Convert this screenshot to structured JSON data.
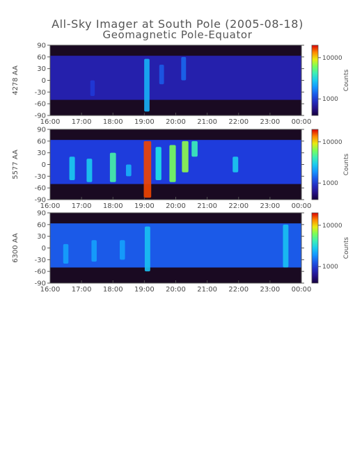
{
  "title": "All-Sky Imager at South Pole (2005-08-18)",
  "subtitle": "Geomagnetic Pole-Equator",
  "chart_data": [
    {
      "type": "heatmap",
      "ylabel": "4278 AA",
      "x_ticks": [
        "16:00",
        "17:00",
        "18:00",
        "19:00",
        "20:00",
        "21:00",
        "22:00",
        "23:00",
        "00:00"
      ],
      "y_ticks": [
        90,
        60,
        30,
        0,
        -30,
        -60,
        -90
      ],
      "ylim": [
        -90,
        90
      ],
      "colorbar": {
        "label": "Counts",
        "ticks": [
          10000,
          1000
        ],
        "scale": "log"
      },
      "background_level": 0.16,
      "data_band_y": [
        -50,
        63
      ],
      "features": [
        {
          "t": 19.08,
          "y": [
            -80,
            55
          ],
          "level": 0.45
        },
        {
          "t": 19.55,
          "y": [
            -10,
            40
          ],
          "level": 0.3
        },
        {
          "t": 20.25,
          "y": [
            0,
            60
          ],
          "level": 0.32
        },
        {
          "t": 17.35,
          "y": [
            -40,
            0
          ],
          "level": 0.24
        }
      ]
    },
    {
      "type": "heatmap",
      "ylabel": "5577 AA",
      "x_ticks": [
        "16:00",
        "17:00",
        "18:00",
        "19:00",
        "20:00",
        "21:00",
        "22:00",
        "23:00",
        "00:00"
      ],
      "y_ticks": [
        90,
        60,
        30,
        0,
        -30,
        -60,
        -90
      ],
      "ylim": [
        -90,
        90
      ],
      "colorbar": {
        "label": "Counts",
        "ticks": [
          10000,
          1000
        ],
        "scale": "log"
      },
      "background_level": 0.25,
      "data_band_y": [
        -50,
        63
      ],
      "features": [
        {
          "t": 16.7,
          "y": [
            -40,
            20
          ],
          "level": 0.5
        },
        {
          "t": 17.25,
          "y": [
            -45,
            15
          ],
          "level": 0.5
        },
        {
          "t": 18.0,
          "y": [
            -45,
            30
          ],
          "level": 0.62
        },
        {
          "t": 18.5,
          "y": [
            -30,
            0
          ],
          "level": 0.45
        },
        {
          "t": 19.1,
          "y": [
            -85,
            60
          ],
          "level": 0.95
        },
        {
          "t": 19.45,
          "y": [
            -40,
            45
          ],
          "level": 0.55
        },
        {
          "t": 19.9,
          "y": [
            -45,
            50
          ],
          "level": 0.7
        },
        {
          "t": 20.3,
          "y": [
            -20,
            60
          ],
          "level": 0.72
        },
        {
          "t": 20.6,
          "y": [
            20,
            60
          ],
          "level": 0.6
        },
        {
          "t": 21.9,
          "y": [
            -20,
            20
          ],
          "level": 0.5
        }
      ]
    },
    {
      "type": "heatmap",
      "ylabel": "6300 AA",
      "x_ticks": [
        "16:00",
        "17:00",
        "18:00",
        "19:00",
        "20:00",
        "21:00",
        "22:00",
        "23:00",
        "00:00"
      ],
      "y_ticks": [
        90,
        60,
        30,
        0,
        -30,
        -60,
        -90
      ],
      "ylim": [
        -90,
        90
      ],
      "colorbar": {
        "label": "Counts",
        "ticks": [
          10000,
          1000
        ],
        "scale": "log"
      },
      "background_level": 0.3,
      "data_band_y": [
        -50,
        63
      ],
      "features": [
        {
          "t": 16.5,
          "y": [
            -40,
            10
          ],
          "level": 0.42
        },
        {
          "t": 17.4,
          "y": [
            -35,
            20
          ],
          "level": 0.42
        },
        {
          "t": 18.3,
          "y": [
            -30,
            20
          ],
          "level": 0.42
        },
        {
          "t": 19.1,
          "y": [
            -60,
            55
          ],
          "level": 0.48
        },
        {
          "t": 23.5,
          "y": [
            -50,
            60
          ],
          "level": 0.48
        }
      ]
    }
  ]
}
